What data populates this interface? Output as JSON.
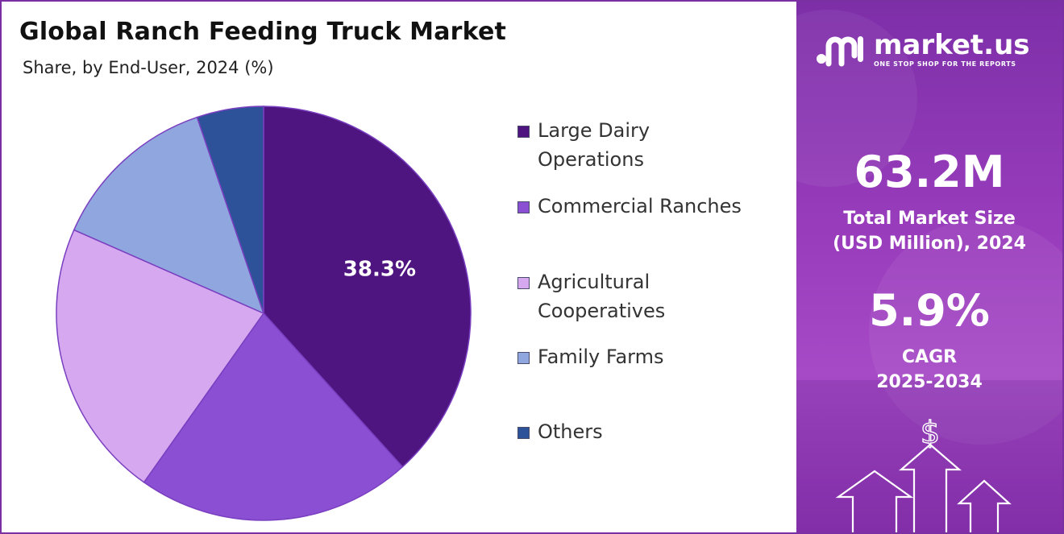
{
  "chart_data": {
    "type": "pie",
    "title": "Global Ranch Feeding Truck Market",
    "subtitle": "Share, by End-User, 2024 (%)",
    "categories": [
      "Large Dairy Operations",
      "Commercial Ranches",
      "Agricultural Cooperatives",
      "Family Farms",
      "Others"
    ],
    "values": [
      38.3,
      21.5,
      21.8,
      13.2,
      5.2
    ],
    "colors": [
      "#4e1580",
      "#8a4fd2",
      "#d5a8ef",
      "#8fa7de",
      "#2e5299"
    ],
    "data_labels": [
      "38.3%",
      null,
      null,
      null,
      null
    ],
    "legend_position": "right"
  },
  "sidebar": {
    "brand_name": "market.us",
    "brand_tagline": "ONE STOP SHOP FOR THE REPORTS",
    "market_size_value": "63.2M",
    "market_size_label_line1": "Total Market Size",
    "market_size_label_line2": "(USD Million), 2024",
    "cagr_value": "5.9%",
    "cagr_label_line1": "CAGR",
    "cagr_label_line2": "2025-2034",
    "currency_symbol": "$"
  }
}
